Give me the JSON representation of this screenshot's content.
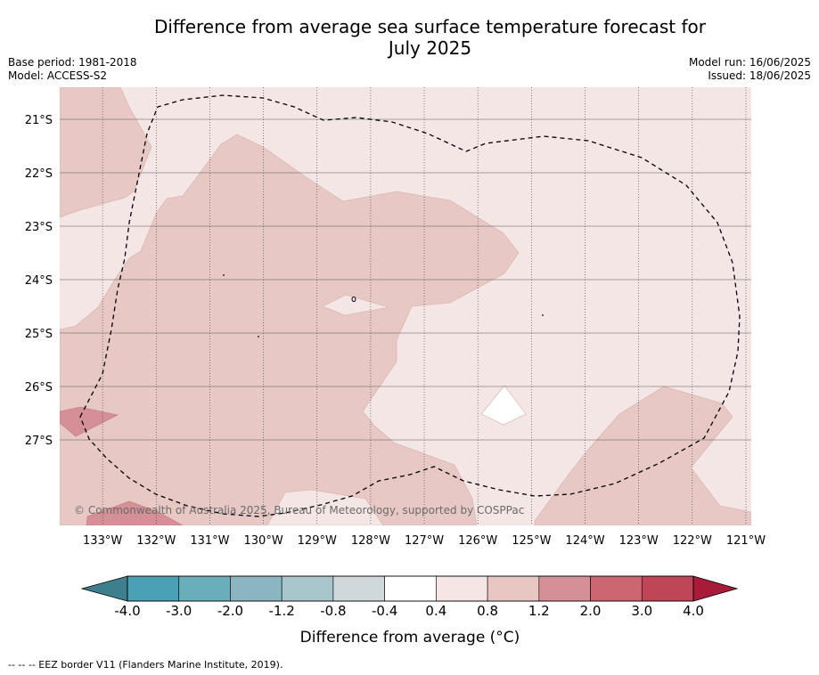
{
  "header": {
    "title_line1": "Difference from average sea surface temperature forecast for",
    "title_line2": "July 2025",
    "base_period": "Base period: 1981-2018",
    "model": "Model: ACCESS-S2",
    "model_run": "Model run: 16/06/2025",
    "issued": "Issued: 18/06/2025"
  },
  "copyright": "© Commonwealth of Australia 2025, Bureau of Meteorology, supported by COSPPac",
  "footer": "--  --  -- EEZ border V11 (Flanders Marine Institute, 2019).",
  "chart_data": {
    "type": "heatmap",
    "title": "Difference from average sea surface temperature forecast for July 2025",
    "x_ticks": [
      "133°W",
      "132°W",
      "131°W",
      "130°W",
      "129°W",
      "128°W",
      "127°W",
      "126°W",
      "125°W",
      "124°W",
      "123°W",
      "122°W",
      "121°W"
    ],
    "x_tick_values": [
      -133,
      -132,
      -131,
      -130,
      -129,
      -128,
      -127,
      -126,
      -125,
      -124,
      -123,
      -122,
      -121
    ],
    "y_ticks": [
      "21°S",
      "22°S",
      "23°S",
      "24°S",
      "25°S",
      "26°S",
      "27°S"
    ],
    "y_tick_values": [
      -21,
      -22,
      -23,
      -24,
      -25,
      -26,
      -27
    ],
    "xlim": [
      -133.8,
      -120.9
    ],
    "ylim": [
      -28.6,
      -20.4
    ],
    "grid": true,
    "colorbar": {
      "label": "Difference from average (°C)",
      "tick_labels": [
        "-4.0",
        "-3.0",
        "-2.0",
        "-1.2",
        "-0.8",
        "-0.4",
        "0.4",
        "0.8",
        "1.2",
        "2.0",
        "3.0",
        "4.0"
      ],
      "below_color": "#3d7f8c",
      "above_color": "#a81c3a",
      "colors": [
        "#4aa0b4",
        "#6aadbb",
        "#8ab6c2",
        "#a9c6cc",
        "#cfd8da",
        "#ffffff",
        "#f5e6e5",
        "#e8c7c3",
        "#d58f96",
        "#cc6670",
        "#bf4657"
      ]
    },
    "regions": [
      {
        "level": "0.4–0.8",
        "color": "#f4e6e5",
        "note": "background anomaly over most of the domain"
      },
      {
        "level": "0.8–1.2",
        "color": "#e7c8c4",
        "note": "western and central broad area"
      },
      {
        "level": "0.8–1.2",
        "color": "#e7c8c4",
        "note": "south-eastern area"
      },
      {
        "level": "1.2–2.0",
        "color": "#d58f96",
        "note": "small patches near 133.5°W, 26.6°S and 132.5°W, 28.2°S"
      },
      {
        "level": "-0.4–0.4",
        "color": "#ffffff",
        "note": "small patch near 125.6°W, 26.6°S"
      }
    ]
  }
}
